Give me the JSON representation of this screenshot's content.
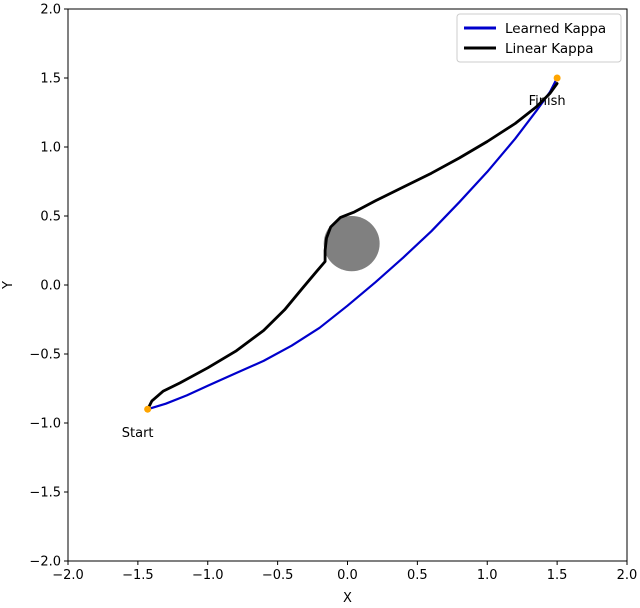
{
  "chart_data": {
    "type": "line",
    "xlabel": "X",
    "ylabel": "Y",
    "xlim": [
      -2.0,
      2.0
    ],
    "ylim": [
      -2.0,
      2.0
    ],
    "xticks": [
      -2.0,
      -1.5,
      -1.0,
      -0.5,
      0.0,
      0.5,
      1.0,
      1.5,
      2.0
    ],
    "yticks": [
      -2.0,
      -1.5,
      -1.0,
      -0.5,
      0.0,
      0.5,
      1.0,
      1.5,
      2.0
    ],
    "xtick_labels": [
      "−2.0",
      "−1.5",
      "−1.0",
      "−0.5",
      "0.0",
      "0.5",
      "1.0",
      "1.5",
      "2.0"
    ],
    "ytick_labels": [
      "−2.0",
      "−1.5",
      "−1.0",
      "−0.5",
      "0.0",
      "0.5",
      "1.0",
      "1.5",
      "2.0"
    ],
    "grid": false,
    "legend_position": "top-right",
    "series": [
      {
        "name": "Learned Kappa",
        "color": "#0000cc",
        "points": [
          [
            -1.43,
            -0.9
          ],
          [
            -1.3,
            -0.86
          ],
          [
            -1.15,
            -0.8
          ],
          [
            -1.0,
            -0.73
          ],
          [
            -0.8,
            -0.64
          ],
          [
            -0.6,
            -0.55
          ],
          [
            -0.4,
            -0.44
          ],
          [
            -0.2,
            -0.31
          ],
          [
            0.0,
            -0.15
          ],
          [
            0.2,
            0.02
          ],
          [
            0.4,
            0.2
          ],
          [
            0.6,
            0.39
          ],
          [
            0.8,
            0.6
          ],
          [
            1.0,
            0.82
          ],
          [
            1.2,
            1.06
          ],
          [
            1.35,
            1.26
          ],
          [
            1.45,
            1.4
          ],
          [
            1.49,
            1.48
          ]
        ]
      },
      {
        "name": "Linear Kappa",
        "color": "#000000",
        "points": [
          [
            -1.43,
            -0.9
          ],
          [
            -1.4,
            -0.84
          ],
          [
            -1.32,
            -0.77
          ],
          [
            -1.2,
            -0.71
          ],
          [
            -1.0,
            -0.6
          ],
          [
            -0.8,
            -0.48
          ],
          [
            -0.6,
            -0.33
          ],
          [
            -0.45,
            -0.18
          ],
          [
            -0.32,
            -0.02
          ],
          [
            -0.22,
            0.1
          ],
          [
            -0.16,
            0.17
          ],
          [
            -0.16,
            0.25
          ],
          [
            -0.15,
            0.34
          ],
          [
            -0.12,
            0.42
          ],
          [
            -0.05,
            0.49
          ],
          [
            0.05,
            0.53
          ],
          [
            0.2,
            0.61
          ],
          [
            0.4,
            0.71
          ],
          [
            0.6,
            0.81
          ],
          [
            0.8,
            0.92
          ],
          [
            1.0,
            1.04
          ],
          [
            1.2,
            1.17
          ],
          [
            1.35,
            1.29
          ],
          [
            1.45,
            1.39
          ],
          [
            1.5,
            1.46
          ]
        ]
      }
    ],
    "obstacle": {
      "center": [
        0.03,
        0.3
      ],
      "radius": 0.2,
      "color": "#808080"
    },
    "markers": [
      {
        "label": "Start",
        "point": [
          -1.43,
          -0.9
        ],
        "color": "#ffa500"
      },
      {
        "label": "Finish",
        "point": [
          1.5,
          1.5
        ],
        "color": "#ffa500"
      }
    ]
  }
}
